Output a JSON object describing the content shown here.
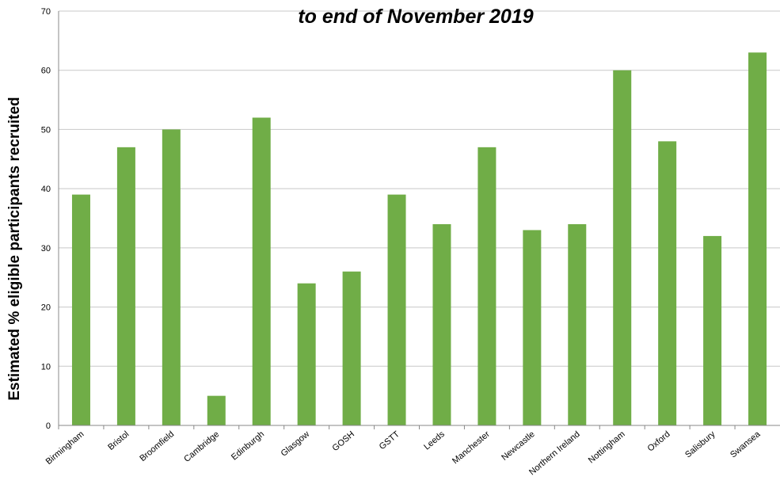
{
  "chart_data": {
    "type": "bar",
    "title": "to end of November 2019",
    "xlabel": "",
    "ylabel": "Estimated % eligible participants recruited",
    "ylim": [
      0,
      70
    ],
    "yticks": [
      0,
      10,
      20,
      30,
      40,
      50,
      60,
      70
    ],
    "grid": true,
    "categories": [
      "Birmingham",
      "Bristol",
      "Broomfield",
      "Cambridge",
      "Edinburgh",
      "Glasgow",
      "GOSH",
      "GSTT",
      "Leeds",
      "Manchester",
      "Newcastle",
      "Northern Ireland",
      "Nottingham",
      "Oxford",
      "Salisbury",
      "Swansea"
    ],
    "values": [
      39,
      47,
      50,
      5,
      52,
      24,
      26,
      39,
      34,
      47,
      33,
      34,
      60,
      48,
      32,
      63
    ],
    "bar_color": "#70ad47"
  }
}
